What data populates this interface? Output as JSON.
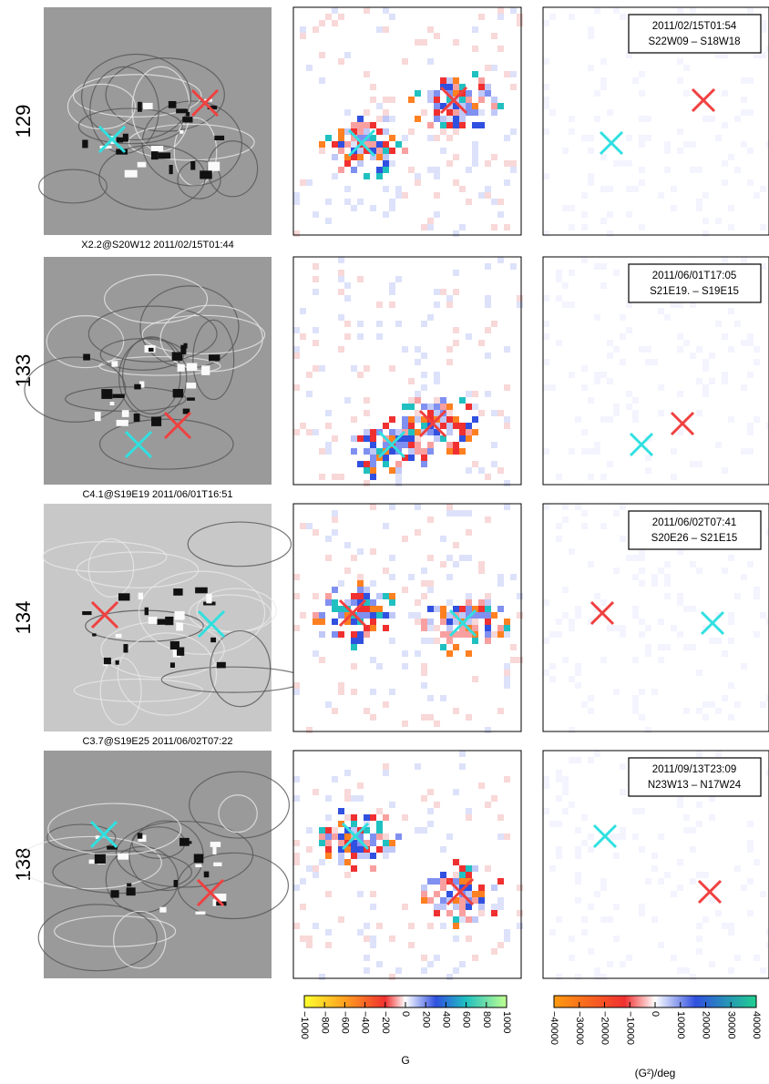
{
  "rows": [
    {
      "id": "129",
      "caption": "X2.2@S20W12  2011/02/15T01:44",
      "box": [
        "2011/02/15T01:54",
        "S22W09 – S18W18"
      ]
    },
    {
      "id": "133",
      "caption": "C4.1@S19E19  2011/06/01T16:51",
      "box": [
        "2011/06/01T17:05",
        "S21E19. – S19E15"
      ]
    },
    {
      "id": "134",
      "caption": "C3.7@S19E25  2011/06/02T07:22",
      "box": [
        "2011/06/02T07:41",
        "S20E26 – S21E15"
      ]
    },
    {
      "id": "138",
      "box": [
        "2011/09/13T23:09",
        "N23W13 – N17W24"
      ]
    }
  ],
  "colorbars": [
    {
      "unit": "G",
      "lim": [
        -1000,
        1000
      ],
      "ticks": [
        {
          "value": -1000,
          "label": "−1000"
        },
        {
          "value": -800,
          "label": "−800"
        },
        {
          "value": -600,
          "label": "−600"
        },
        {
          "value": -400,
          "label": "−400"
        },
        {
          "value": -200,
          "label": "−200"
        },
        0,
        200,
        400,
        600,
        800,
        1000
      ]
    },
    {
      "unit": "(G²)/deg",
      "lim": [
        -40000,
        40000
      ],
      "ticks": [
        {
          "value": -40000,
          "label": "−40000"
        },
        {
          "value": -30000,
          "label": "−30000"
        },
        {
          "value": -20000,
          "label": "−20000"
        },
        {
          "value": -10000,
          "label": "−10000"
        },
        0,
        10000,
        20000,
        30000,
        40000
      ]
    }
  ]
}
